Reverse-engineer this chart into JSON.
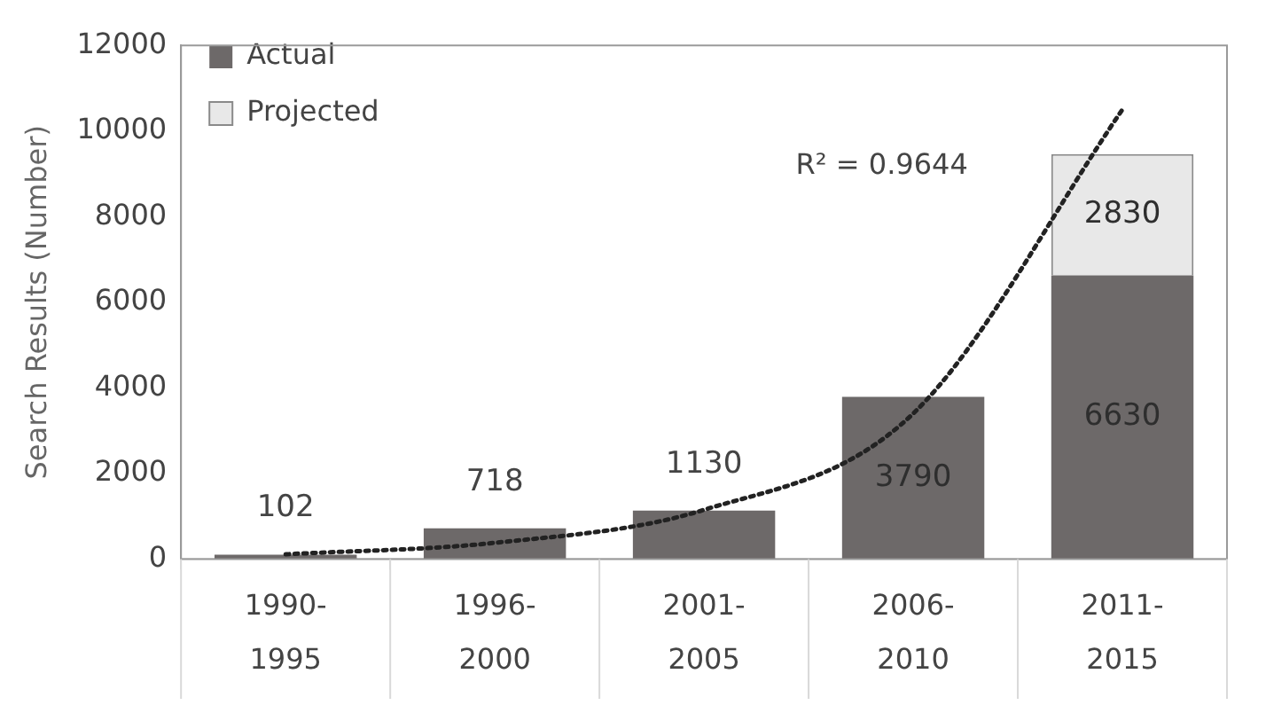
{
  "chart_data": {
    "type": "bar",
    "stacked": true,
    "ylabel": "Search Results (Number)",
    "categories": [
      "1990-1995",
      "1996-2000",
      "2001-2005",
      "2006-2010",
      "2011-2015"
    ],
    "series": [
      {
        "name": "Actual",
        "color": "#6d6969",
        "values": [
          102,
          718,
          1130,
          3790,
          6630
        ],
        "value_labels": [
          "102",
          "718",
          "1130",
          "3790",
          "6630"
        ]
      },
      {
        "name": "Projected",
        "color": "#e8e8e8",
        "values": [
          null,
          null,
          null,
          null,
          2830
        ],
        "value_labels": [
          null,
          null,
          null,
          null,
          "2830"
        ]
      },
      {
        "type": "line",
        "color": "#222222",
        "line_style": "dotted",
        "marker": "none",
        "values": [
          110,
          380,
          1150,
          3400,
          10500
        ]
      }
    ],
    "annotations": [
      "R² = 0.9644"
    ],
    "ylim": [
      0,
      12000
    ],
    "yticks": [
      0,
      2000,
      4000,
      6000,
      8000,
      10000,
      12000
    ],
    "grid": false,
    "legend": "top left"
  }
}
